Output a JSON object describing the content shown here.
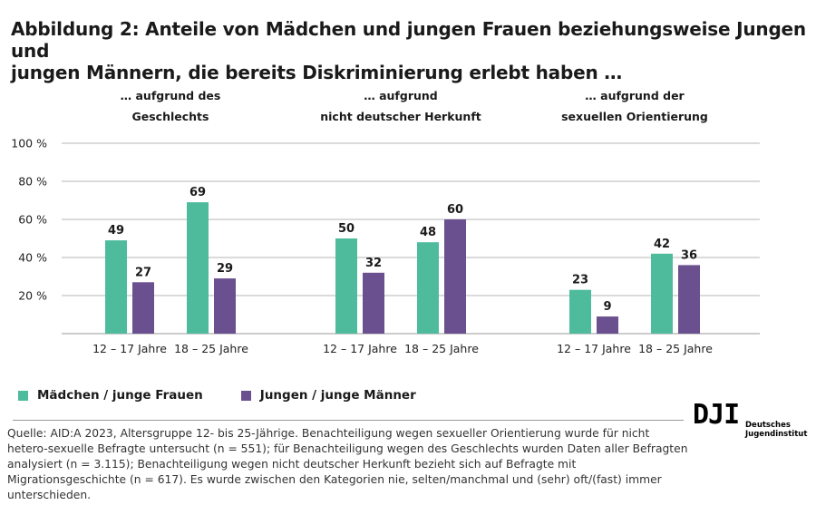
{
  "title_line1": "Abbildung 2: Anteile von Mädchen und jungen Frauen beziehungsweise Jungen und",
  "title_line2": "jungen Männern, die bereits Diskriminierung erlebt haben …",
  "chart_data": {
    "type": "bar",
    "groups": [
      {
        "header_line1": "… aufgrund des",
        "header_line2": "Geschlechts",
        "categories": [
          "12 – 17 Jahre",
          "18 – 25 Jahre"
        ],
        "series": [
          {
            "name": "Mädchen / junge Frauen",
            "values": [
              49,
              69
            ]
          },
          {
            "name": "Jungen / junge Männer",
            "values": [
              27,
              29
            ]
          }
        ]
      },
      {
        "header_line1": "… aufgrund",
        "header_line2": "nicht deutscher Herkunft",
        "categories": [
          "12 – 17 Jahre",
          "18 – 25 Jahre"
        ],
        "series": [
          {
            "name": "Mädchen / junge Frauen",
            "values": [
              50,
              48
            ]
          },
          {
            "name": "Jungen / junge Männer",
            "values": [
              32,
              60
            ]
          }
        ]
      },
      {
        "header_line1": "… aufgrund der",
        "header_line2": "sexuellen Orientierung",
        "categories": [
          "12 – 17 Jahre",
          "18 – 25 Jahre"
        ],
        "series": [
          {
            "name": "Mädchen / junge Frauen",
            "values": [
              23,
              42
            ]
          },
          {
            "name": "Jungen / junge Männer",
            "values": [
              9,
              36
            ]
          }
        ]
      }
    ],
    "y_ticks": [
      "20 %",
      "40 %",
      "60 %",
      "80 %",
      "100 %"
    ],
    "ylim": [
      0,
      100
    ],
    "grid": true,
    "colors": {
      "female": "#4dbb9c",
      "male": "#6a508e"
    }
  },
  "legend": {
    "female_label": "Mädchen / junge Frauen",
    "male_label": "Jungen / junge Männer"
  },
  "source": "Quelle: AID:A 2023, Altersgruppe 12- bis 25-Jährige. Benachteiligung wegen sexueller Orientierung wurde für nicht hetero-sexuelle Befragte untersucht (n = 551); für Benachteiligung wegen des Geschlechts wurden Daten aller Befragten analysiert (n = 3.115); Benachteiligung wegen nicht deutscher Herkunft bezieht sich auf Befragte mit Migrationsgeschichte (n = 617). Es wurde zwischen den Kategorien nie, selten/manchmal und (sehr) oft/(fast) immer unterschieden.",
  "logo": {
    "mark": "DJI",
    "line1": "Deutsches",
    "line2": "Jugendinstitut"
  }
}
